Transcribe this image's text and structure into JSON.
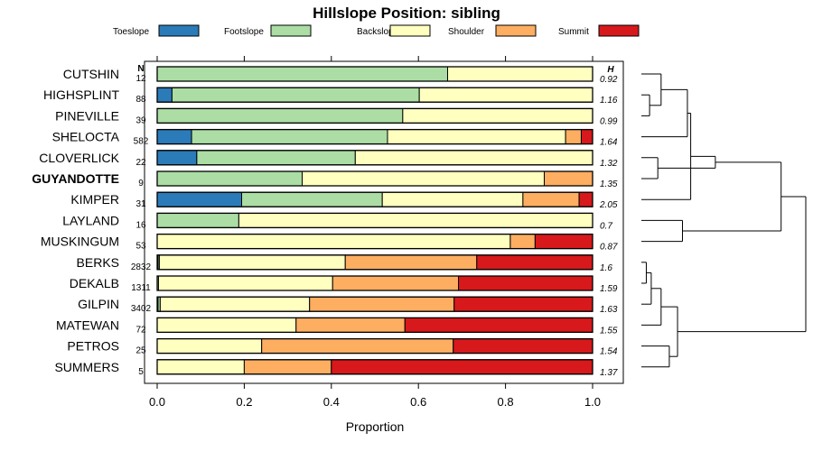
{
  "chart_data": {
    "type": "stacked-bar",
    "title": "Hillslope Position: sibling",
    "xlabel": "Proportion",
    "xlim": [
      0,
      1
    ],
    "xticks": [
      "0.0",
      "0.2",
      "0.4",
      "0.6",
      "0.8",
      "1.0"
    ],
    "n_header": "N",
    "h_header": "H",
    "legend": [
      {
        "name": "Toeslope",
        "color": "#2B7BB9"
      },
      {
        "name": "Footslope",
        "color": "#ABDDA4"
      },
      {
        "name": "Backslope",
        "color": "#FFFFBF"
      },
      {
        "name": "Shoulder",
        "color": "#FDAE61"
      },
      {
        "name": "Summit",
        "color": "#D7191C"
      }
    ],
    "rows": [
      {
        "label": "CUTSHIN",
        "bold": false,
        "n": "12",
        "h": "0.92",
        "values": [
          0,
          0.667,
          0.333,
          0,
          0
        ]
      },
      {
        "label": "HIGHSPLINT",
        "bold": false,
        "n": "88",
        "h": "1.16",
        "values": [
          0.034,
          0.568,
          0.398,
          0,
          0
        ]
      },
      {
        "label": "PINEVILLE",
        "bold": false,
        "n": "39",
        "h": "0.99",
        "values": [
          0,
          0.564,
          0.436,
          0,
          0
        ]
      },
      {
        "label": "SHELOCTA",
        "bold": false,
        "n": "582",
        "h": "1.64",
        "values": [
          0.079,
          0.45,
          0.409,
          0.036,
          0.026
        ]
      },
      {
        "label": "CLOVERLICK",
        "bold": false,
        "n": "22",
        "h": "1.32",
        "values": [
          0.091,
          0.364,
          0.545,
          0,
          0
        ]
      },
      {
        "label": "GUYANDOTTE",
        "bold": true,
        "n": "9",
        "h": "1.35",
        "values": [
          0,
          0.333,
          0.556,
          0.111,
          0
        ]
      },
      {
        "label": "KIMPER",
        "bold": false,
        "n": "31",
        "h": "2.05",
        "values": [
          0.194,
          0.323,
          0.323,
          0.129,
          0.031
        ]
      },
      {
        "label": "LAYLAND",
        "bold": false,
        "n": "16",
        "h": "0.7",
        "values": [
          0,
          0.1875,
          0.8125,
          0,
          0
        ]
      },
      {
        "label": "MUSKINGUM",
        "bold": false,
        "n": "53",
        "h": "0.87",
        "values": [
          0,
          0,
          0.811,
          0.057,
          0.132
        ]
      },
      {
        "label": "BERKS",
        "bold": false,
        "n": "2832",
        "h": "1.6",
        "values": [
          0.002,
          0.003,
          0.427,
          0.302,
          0.266
        ]
      },
      {
        "label": "DEKALB",
        "bold": false,
        "n": "1311",
        "h": "1.59",
        "values": [
          0,
          0.003,
          0.4,
          0.289,
          0.308
        ]
      },
      {
        "label": "GILPIN",
        "bold": false,
        "n": "3402",
        "h": "1.63",
        "values": [
          0.002,
          0.005,
          0.343,
          0.332,
          0.318
        ]
      },
      {
        "label": "MATEWAN",
        "bold": false,
        "n": "72",
        "h": "1.55",
        "values": [
          0,
          0,
          0.319,
          0.25,
          0.431
        ]
      },
      {
        "label": "PETROS",
        "bold": false,
        "n": "25",
        "h": "1.54",
        "values": [
          0,
          0,
          0.24,
          0.44,
          0.32
        ]
      },
      {
        "label": "SUMMERS",
        "bold": false,
        "n": "5",
        "h": "1.37",
        "values": [
          0,
          0,
          0.2,
          0.2,
          0.6
        ]
      }
    ],
    "dendrogram": {
      "leaves": [
        "CUTSHIN",
        "HIGHSPLINT",
        "PINEVILLE",
        "SHELOCTA",
        "CLOVERLICK",
        "GUYANDOTTE",
        "KIMPER",
        "LAYLAND",
        "MUSKINGUM",
        "BERKS",
        "DEKALB",
        "GILPIN",
        "MATEWAN",
        "PETROS",
        "SUMMERS"
      ],
      "merges": [
        {
          "a": "L1",
          "b": "L2",
          "height": 0.05
        },
        {
          "a": "L0",
          "b": "N0",
          "height": 0.12
        },
        {
          "a": "L4",
          "b": "L5",
          "height": 0.1
        },
        {
          "a": "L7",
          "b": "L8",
          "height": 0.25
        },
        {
          "a": "L9",
          "b": "L10",
          "height": 0.03
        },
        {
          "a": "N4",
          "b": "L11",
          "height": 0.06
        },
        {
          "a": "N5",
          "b": "L12",
          "height": 0.12
        },
        {
          "a": "L13",
          "b": "L14",
          "height": 0.17
        },
        {
          "a": "N6",
          "b": "N7",
          "height": 0.22
        },
        {
          "a": "N1",
          "b": "L3",
          "height": 0.28
        },
        {
          "a": "N9",
          "b": "L6",
          "height": 0.3
        },
        {
          "a": "N10",
          "b": "N2",
          "height": 0.45
        },
        {
          "a": "N11",
          "b": "N3",
          "height": 0.85
        },
        {
          "a": "N12",
          "b": "N8",
          "height": 1.0
        }
      ]
    }
  }
}
